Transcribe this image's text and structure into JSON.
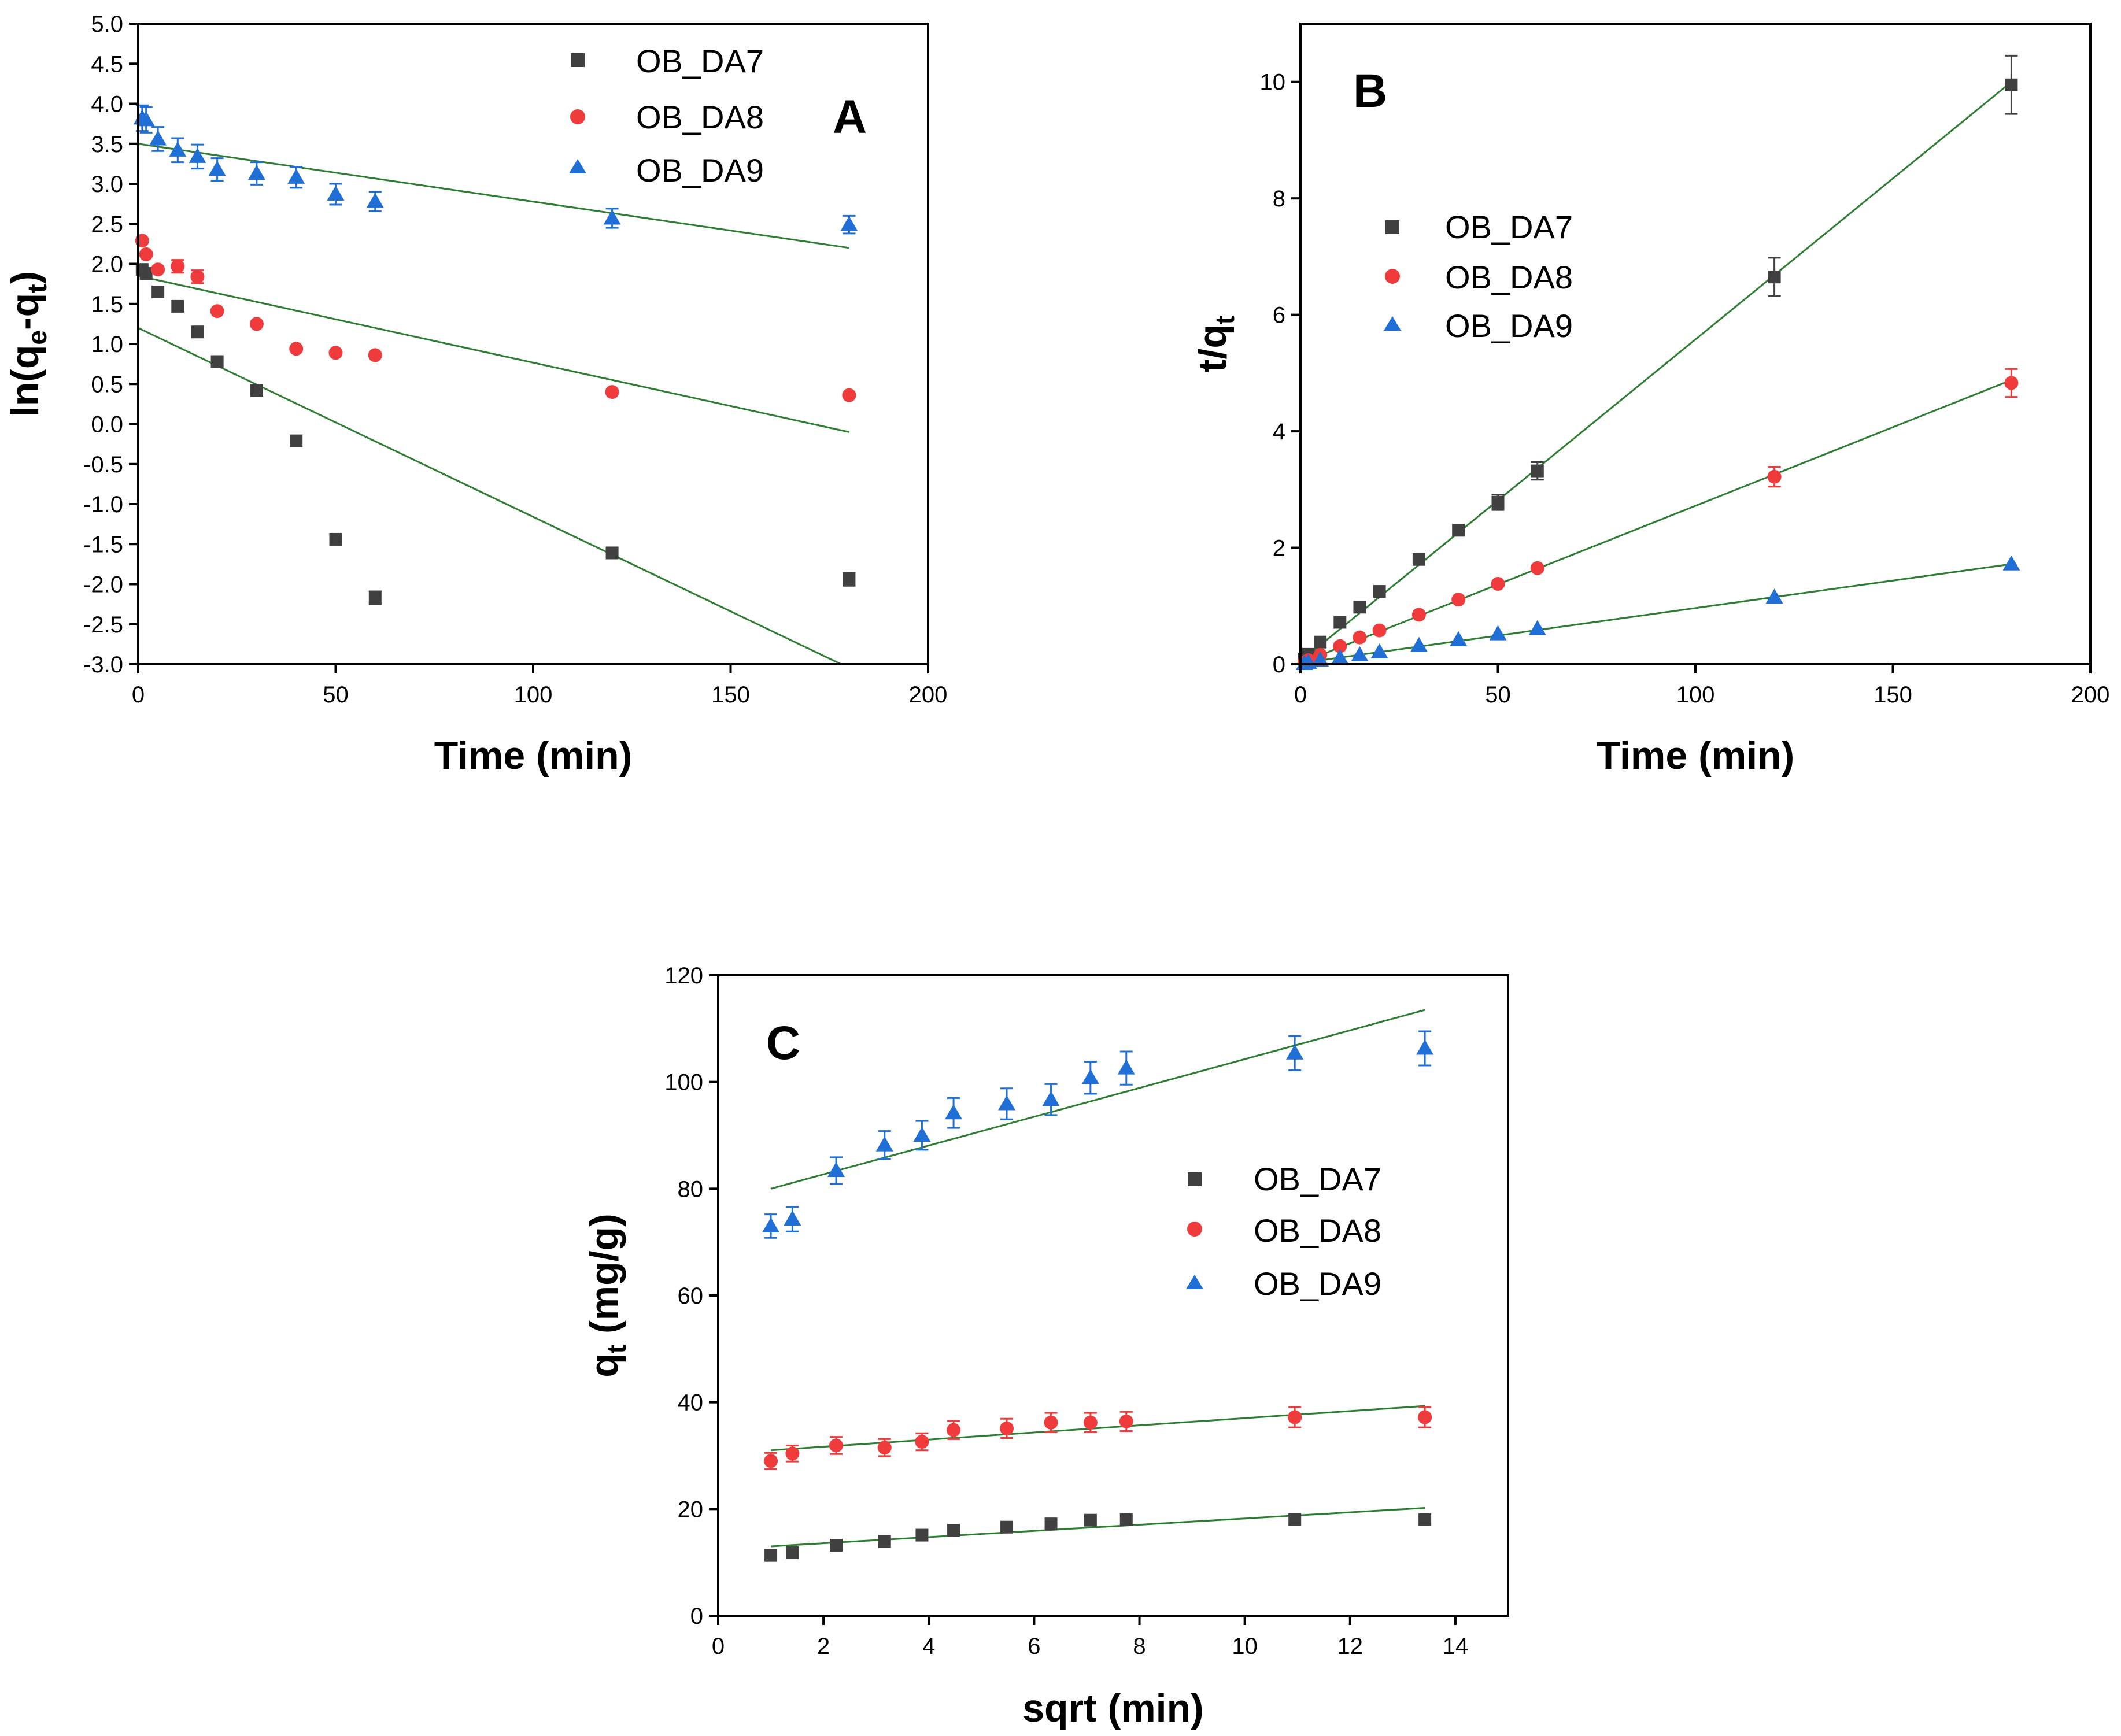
{
  "colors": {
    "OB_DA7": "#404040",
    "OB_DA8": "#ef3b3b",
    "OB_DA9": "#1f6fd6",
    "fit": "#2e7d32"
  },
  "chart_data": [
    {
      "id": "A",
      "type": "scatter",
      "panel_label": "A",
      "title": "",
      "xlabel": "Time (min)",
      "ylabel_parts": [
        "ln(q",
        "e",
        "-q",
        "t",
        ")"
      ],
      "xlim": [
        0,
        200
      ],
      "ylim": [
        -3.0,
        5.0
      ],
      "xticks": [
        0,
        50,
        100,
        150,
        200
      ],
      "xtick_labels": [
        "0",
        "50",
        "100",
        "150",
        "200"
      ],
      "yticks": [
        -3.0,
        -2.5,
        -2.0,
        -1.5,
        -1.0,
        -0.5,
        0.0,
        0.5,
        1.0,
        1.5,
        2.0,
        2.5,
        3.0,
        3.5,
        4.0,
        4.5,
        5.0
      ],
      "ytick_labels": [
        "-3.0",
        "-2.5",
        "-2.0",
        "-1.5",
        "-1.0",
        "-0.5",
        "0.0",
        "0.5",
        "1.0",
        "1.5",
        "2.0",
        "2.5",
        "3.0",
        "3.5",
        "4.0",
        "4.5",
        "5.0"
      ],
      "legend_position": "top-right",
      "series": [
        {
          "name": "OB_DA7",
          "marker": "square",
          "x": [
            1,
            2,
            5,
            10,
            15,
            20,
            30,
            40,
            50,
            60,
            120,
            180
          ],
          "y": [
            1.93,
            1.88,
            1.65,
            1.47,
            1.15,
            0.78,
            0.42,
            -0.21,
            -1.44,
            -2.17,
            -1.61,
            -1.94
          ],
          "err": [
            0,
            0,
            0,
            0,
            0,
            0,
            0,
            0,
            0,
            0.08,
            0.05,
            0.08
          ],
          "fit": [
            [
              0,
              1.2
            ],
            [
              178,
              -3.0
            ]
          ]
        },
        {
          "name": "OB_DA8",
          "marker": "circle",
          "x": [
            1,
            2,
            5,
            10,
            15,
            20,
            30,
            40,
            50,
            60,
            120,
            180
          ],
          "y": [
            2.29,
            2.12,
            1.93,
            1.97,
            1.84,
            1.41,
            1.25,
            0.94,
            0.89,
            0.86,
            0.4,
            0.36
          ],
          "err": [
            0,
            0,
            0,
            0.08,
            0.08,
            0,
            0,
            0,
            0,
            0,
            0,
            0
          ],
          "fit": [
            [
              0,
              1.85
            ],
            [
              180,
              -0.1
            ]
          ]
        },
        {
          "name": "OB_DA9",
          "marker": "triangle",
          "x": [
            1,
            2,
            5,
            10,
            15,
            20,
            30,
            40,
            50,
            60,
            120,
            180
          ],
          "y": [
            3.82,
            3.8,
            3.56,
            3.42,
            3.34,
            3.18,
            3.13,
            3.08,
            2.87,
            2.78,
            2.57,
            2.49
          ],
          "err": [
            0.16,
            0.16,
            0.15,
            0.15,
            0.15,
            0.14,
            0.14,
            0.13,
            0.13,
            0.12,
            0.12,
            0.11
          ],
          "fit": [
            [
              0,
              3.5
            ],
            [
              180,
              2.2
            ]
          ]
        }
      ]
    },
    {
      "id": "B",
      "type": "scatter",
      "panel_label": "B",
      "title": "",
      "xlabel": "Time (min)",
      "ylabel_parts": [
        "t/q",
        "t"
      ],
      "xlim": [
        0,
        200
      ],
      "ylim": [
        0,
        11
      ],
      "xticks": [
        0,
        50,
        100,
        150,
        200
      ],
      "xtick_labels": [
        "0",
        "50",
        "100",
        "150",
        "200"
      ],
      "yticks": [
        0,
        2,
        4,
        6,
        8,
        10
      ],
      "ytick_labels": [
        "0",
        "2",
        "4",
        "6",
        "8",
        "10"
      ],
      "legend_position": "top-left",
      "series": [
        {
          "name": "OB_DA7",
          "marker": "square",
          "x": [
            1,
            2,
            5,
            10,
            15,
            20,
            30,
            40,
            50,
            60,
            120,
            180
          ],
          "y": [
            0.09,
            0.17,
            0.38,
            0.72,
            0.98,
            1.25,
            1.8,
            2.3,
            2.78,
            3.32,
            6.65,
            9.95
          ],
          "err": [
            0,
            0,
            0,
            0,
            0,
            0,
            0,
            0,
            0.13,
            0.15,
            0.33,
            0.5
          ],
          "fit": [
            [
              0,
              0.05
            ],
            [
              180,
              10.0
            ]
          ]
        },
        {
          "name": "OB_DA8",
          "marker": "circle",
          "x": [
            1,
            2,
            5,
            10,
            15,
            20,
            30,
            40,
            50,
            60,
            120,
            180
          ],
          "y": [
            0.03,
            0.07,
            0.16,
            0.31,
            0.46,
            0.58,
            0.85,
            1.11,
            1.38,
            1.65,
            3.22,
            4.83
          ],
          "err": [
            0,
            0,
            0,
            0,
            0,
            0,
            0,
            0,
            0,
            0,
            0.17,
            0.24
          ],
          "fit": [
            [
              0,
              0.02
            ],
            [
              180,
              4.88
            ]
          ]
        },
        {
          "name": "OB_DA9",
          "marker": "triangle",
          "x": [
            1,
            2,
            5,
            10,
            15,
            20,
            30,
            40,
            50,
            60,
            120,
            180
          ],
          "y": [
            0.01,
            0.03,
            0.07,
            0.11,
            0.16,
            0.21,
            0.32,
            0.42,
            0.52,
            0.61,
            1.15,
            1.72
          ],
          "err": [
            0,
            0,
            0,
            0,
            0,
            0,
            0,
            0,
            0,
            0,
            0,
            0
          ],
          "fit": [
            [
              0,
              0.02
            ],
            [
              180,
              1.72
            ]
          ]
        }
      ]
    },
    {
      "id": "C",
      "type": "scatter",
      "panel_label": "C",
      "title": "",
      "xlabel": "sqrt (min)",
      "ylabel_parts": [
        "q",
        "t",
        " (mg/g)"
      ],
      "xlim": [
        0,
        15
      ],
      "ylim": [
        0,
        120
      ],
      "xticks": [
        0,
        2,
        4,
        6,
        8,
        10,
        12,
        14
      ],
      "xtick_labels": [
        "0",
        "2",
        "4",
        "6",
        "8",
        "10",
        "12",
        "14"
      ],
      "yticks": [
        0,
        20,
        40,
        60,
        80,
        100,
        120
      ],
      "ytick_labels": [
        "0",
        "20",
        "40",
        "60",
        "80",
        "100",
        "120"
      ],
      "legend_position": "center-right",
      "series": [
        {
          "name": "OB_DA7",
          "marker": "square",
          "x": [
            1.0,
            1.41,
            2.24,
            3.16,
            3.87,
            4.47,
            5.48,
            6.32,
            7.07,
            7.75,
            10.95,
            13.42
          ],
          "y": [
            11.3,
            11.8,
            13.2,
            13.9,
            15.1,
            16.0,
            16.6,
            17.2,
            17.9,
            18.0,
            18.0,
            18.0
          ],
          "err": [
            0,
            0,
            0,
            0,
            0,
            0,
            0,
            0,
            0,
            0,
            0,
            0
          ],
          "fit": [
            [
              1.0,
              13.0
            ],
            [
              13.42,
              20.2
            ]
          ]
        },
        {
          "name": "OB_DA8",
          "marker": "circle",
          "x": [
            1.0,
            1.41,
            2.24,
            3.16,
            3.87,
            4.47,
            5.48,
            6.32,
            7.07,
            7.75,
            10.95,
            13.42
          ],
          "y": [
            29.0,
            30.4,
            31.9,
            31.5,
            32.6,
            34.8,
            35.1,
            36.2,
            36.2,
            36.4,
            37.2,
            37.2
          ],
          "err": [
            1.5,
            1.5,
            1.6,
            1.6,
            1.6,
            1.7,
            1.8,
            1.8,
            1.8,
            1.8,
            1.9,
            1.9
          ],
          "fit": [
            [
              1.0,
              31.0
            ],
            [
              13.42,
              39.3
            ]
          ]
        },
        {
          "name": "OB_DA9",
          "marker": "triangle",
          "x": [
            1.0,
            1.41,
            2.24,
            3.16,
            3.87,
            4.47,
            5.48,
            6.32,
            7.07,
            7.75,
            10.95,
            13.42
          ],
          "y": [
            73.0,
            74.3,
            83.4,
            88.2,
            90.0,
            94.2,
            95.9,
            96.7,
            100.8,
            102.6,
            105.4,
            106.3
          ],
          "err": [
            2.2,
            2.3,
            2.5,
            2.6,
            2.7,
            2.8,
            2.9,
            2.9,
            3.0,
            3.1,
            3.2,
            3.2
          ],
          "fit": [
            [
              1.0,
              80.0
            ],
            [
              13.42,
              113.5
            ]
          ]
        }
      ]
    }
  ]
}
